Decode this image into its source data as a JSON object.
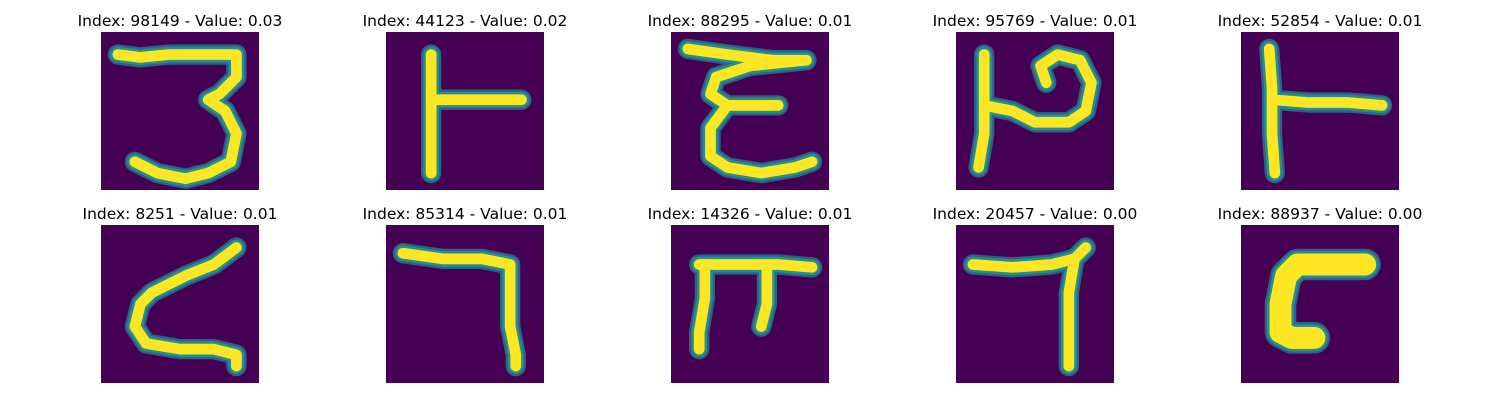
{
  "colors": {
    "background": "#440154",
    "stroke_core": "#fde725",
    "stroke_mid": "#21918c",
    "stroke_edge": "#31688e"
  },
  "panels": [
    {
      "title": "Index: 98149 - Value: 0.03",
      "glyph": "three"
    },
    {
      "title": "Index: 44123 - Value: 0.02",
      "glyph": "t-right"
    },
    {
      "title": "Index: 88295 - Value: 0.01",
      "glyph": "epsilon"
    },
    {
      "title": "Index: 95769 - Value: 0.01",
      "glyph": "loop-right"
    },
    {
      "title": "Index: 52854 - Value: 0.01",
      "glyph": "t-right-thin"
    },
    {
      "title": "Index: 8251 - Value: 0.01",
      "glyph": "z-curve"
    },
    {
      "title": "Index: 85314 - Value: 0.01",
      "glyph": "seven-hook"
    },
    {
      "title": "Index: 14326 - Value: 0.01",
      "glyph": "pi"
    },
    {
      "title": "Index: 20457 - Value: 0.00",
      "glyph": "seven"
    },
    {
      "title": "Index: 88937 - Value: 0.00",
      "glyph": "c-block"
    }
  ]
}
